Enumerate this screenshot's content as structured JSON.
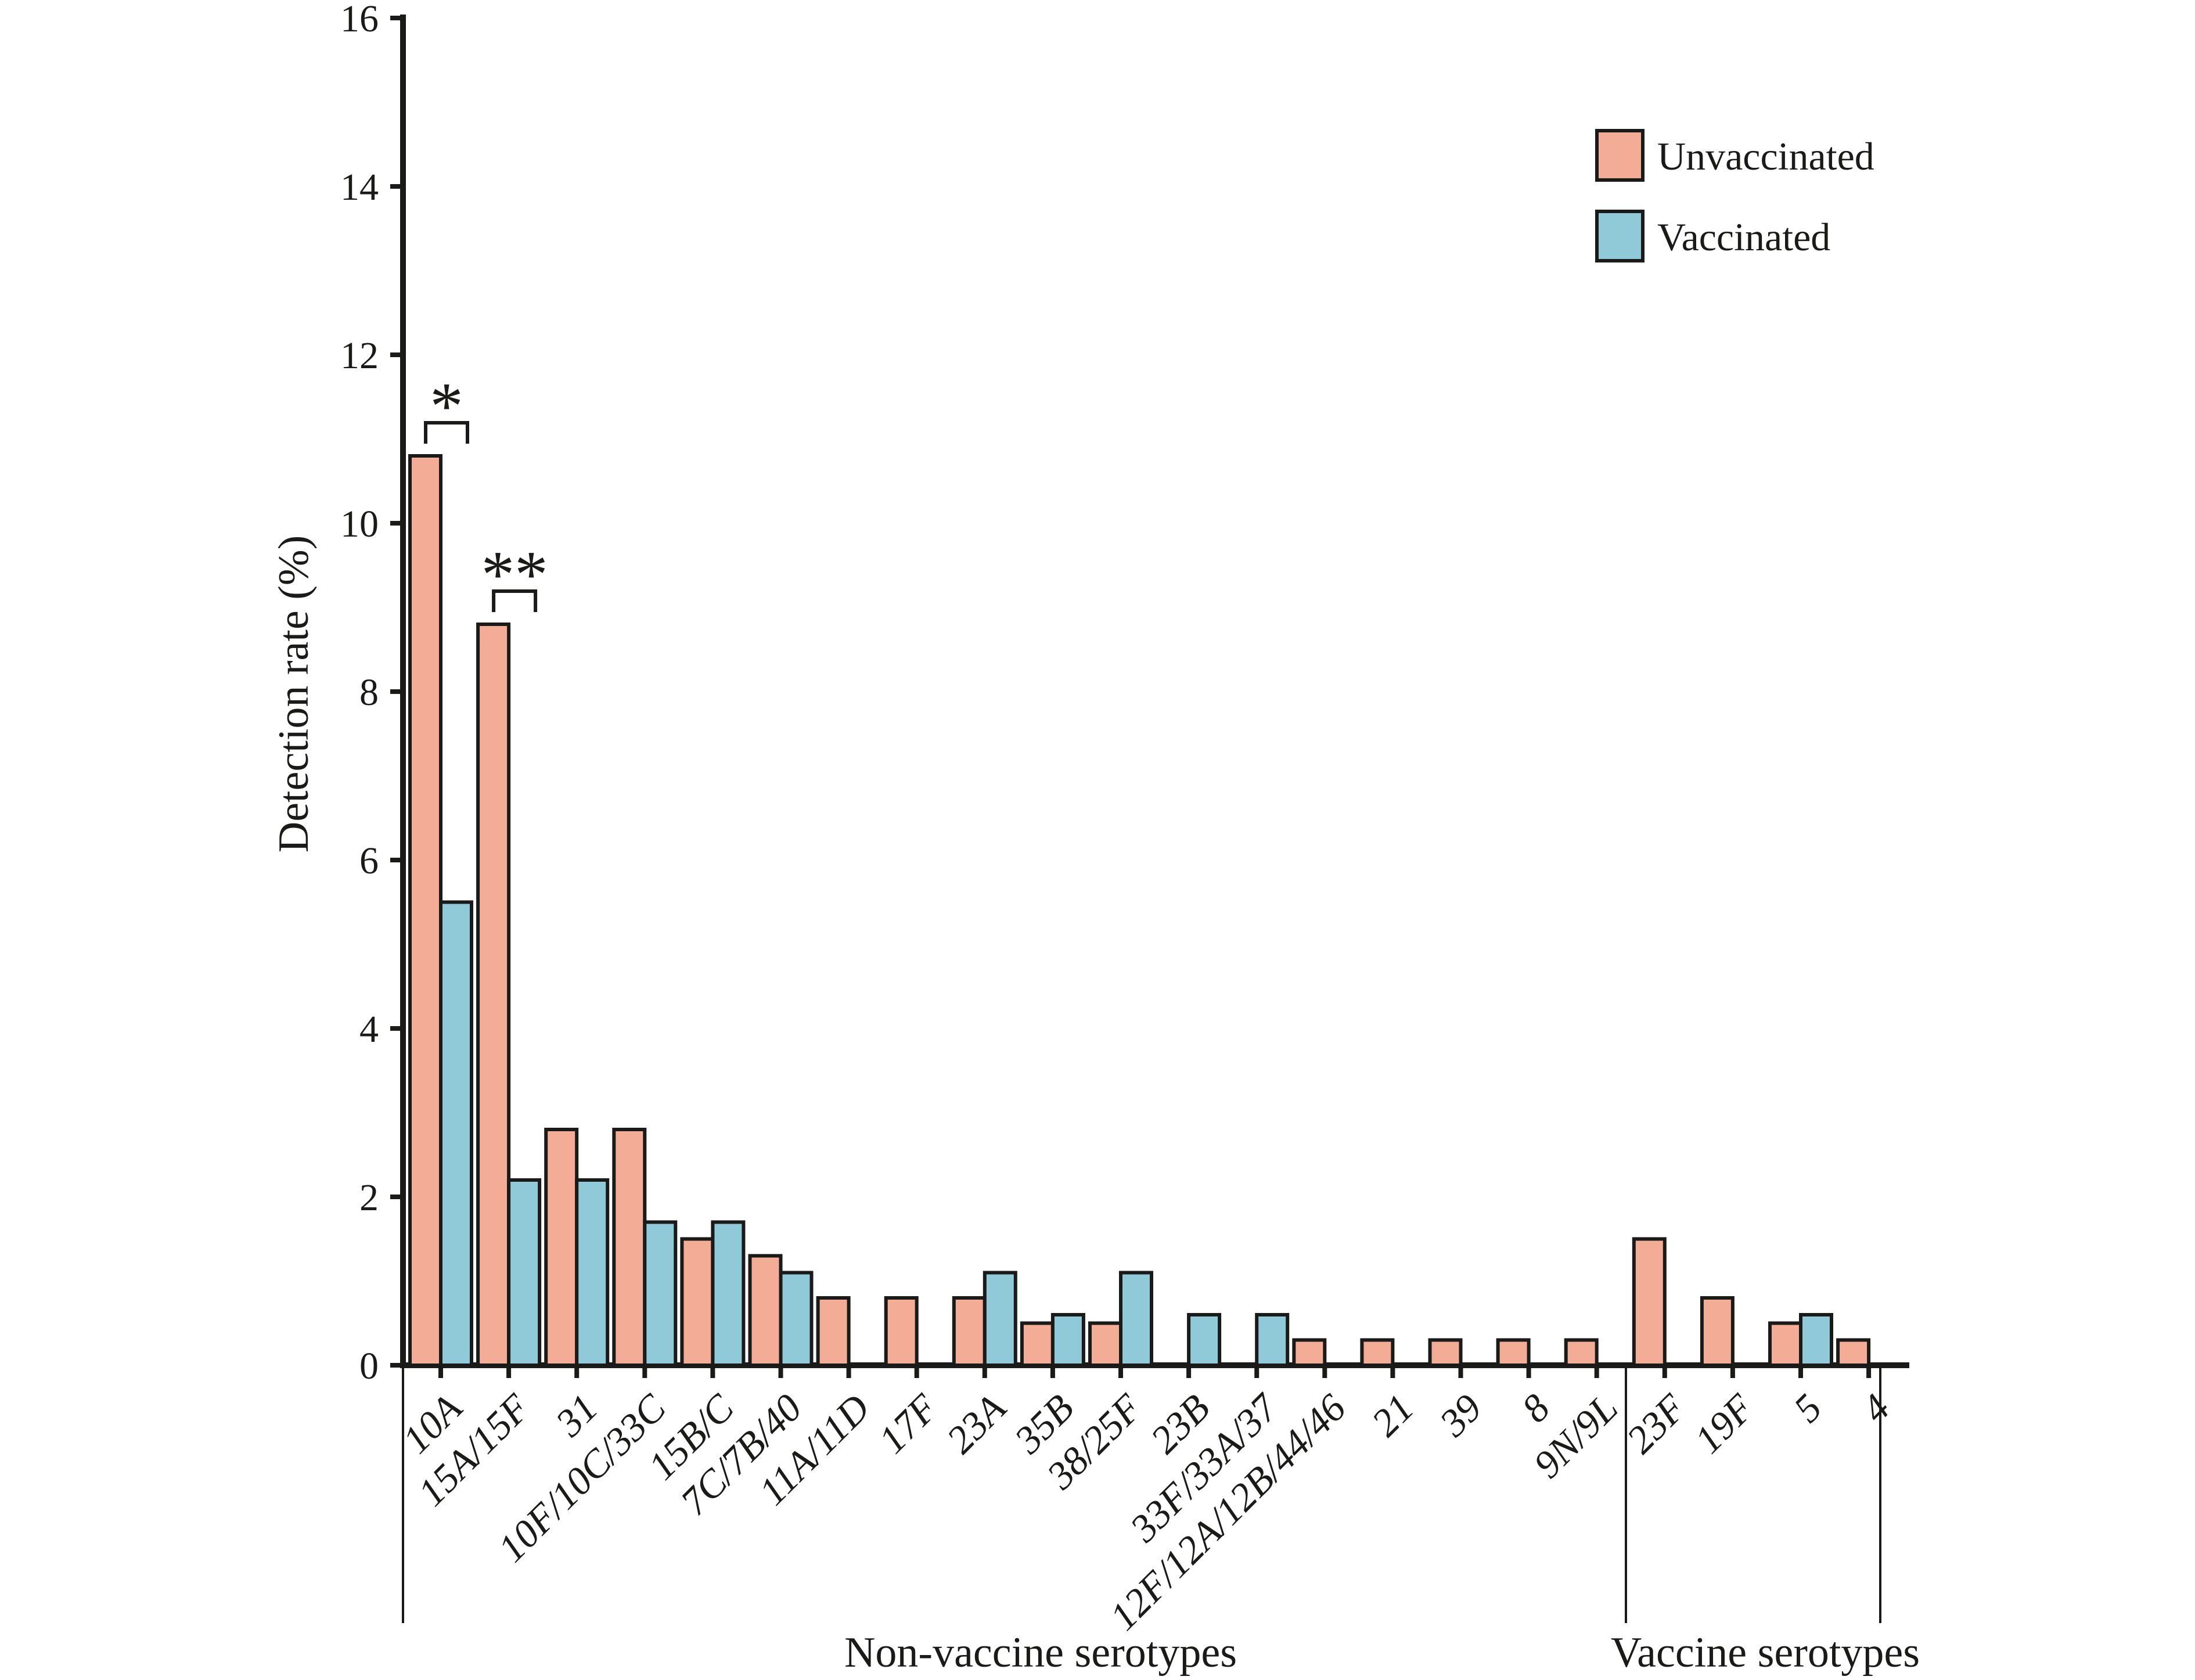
{
  "chart_data": {
    "type": "bar",
    "title": "",
    "xlabel": "",
    "ylabel": "Detection rate (%)",
    "ylim": [
      0,
      16
    ],
    "yticks": [
      0,
      2,
      4,
      6,
      8,
      10,
      12,
      14,
      16
    ],
    "grid": false,
    "legend_position": "top-right",
    "categories": [
      "10A",
      "15A/15F",
      "31",
      "10F/10C/33C",
      "15B/C",
      "7C/7B/40",
      "11A/11D",
      "17F",
      "23A",
      "35B",
      "38/25F",
      "23B",
      "33F/33A/37",
      "12F/12A/12B/44/46",
      "21",
      "39",
      "8",
      "9N/9L",
      "23F",
      "19F",
      "5",
      "4"
    ],
    "series": [
      {
        "name": "Unvaccinated",
        "color": "#F3AC96",
        "values": [
          10.8,
          8.8,
          2.8,
          2.8,
          1.5,
          1.3,
          0.8,
          0.8,
          0.8,
          0.5,
          0.5,
          0,
          0,
          0.3,
          0.3,
          0.3,
          0.3,
          0.3,
          1.5,
          0.8,
          0.5,
          0.3
        ]
      },
      {
        "name": "Vaccinated",
        "color": "#90C9D8",
        "values": [
          5.5,
          2.2,
          2.2,
          1.7,
          1.7,
          1.1,
          0,
          0,
          1.1,
          0.6,
          1.1,
          0.6,
          0.6,
          0,
          0,
          0,
          0,
          0,
          0,
          0,
          0.6,
          0
        ]
      }
    ],
    "groups": [
      {
        "label": "Non-vaccine serotypes",
        "from": 0,
        "to": 17
      },
      {
        "label": "Vaccine serotypes",
        "from": 18,
        "to": 21
      }
    ],
    "significance": [
      {
        "category": "10A",
        "symbol": "*"
      },
      {
        "category": "15A/15F",
        "symbol": "**"
      }
    ],
    "outline_color": "#1a1a18",
    "background_color": "#ffffff"
  }
}
